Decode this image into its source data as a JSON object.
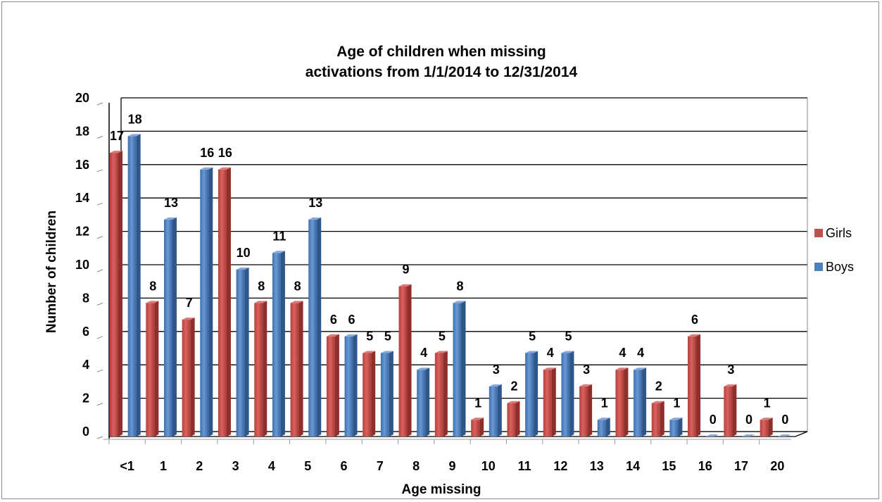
{
  "chart_data": {
    "type": "bar",
    "title": "Age of children when missing",
    "subtitle": "activations from 1/1/2014 to 12/31/2014",
    "xlabel": "Age missing",
    "ylabel": "Number of children",
    "ylim": [
      0,
      20
    ],
    "y_ticks": [
      "0",
      "2",
      "4",
      "6",
      "8",
      "10",
      "12",
      "14",
      "16",
      "18",
      "20"
    ],
    "grid": true,
    "legend_position": "right",
    "categories": [
      "<1",
      "1",
      "2",
      "3",
      "4",
      "5",
      "6",
      "7",
      "8",
      "9",
      "10",
      "11",
      "12",
      "13",
      "14",
      "15",
      "16",
      "17",
      "20"
    ],
    "series": [
      {
        "name": "Girls",
        "color": "#c0504d",
        "values": [
          17,
          8,
          7,
          16,
          8,
          8,
          6,
          5,
          9,
          5,
          1,
          2,
          4,
          3,
          4,
          2,
          6,
          3,
          1
        ]
      },
      {
        "name": "Boys",
        "color": "#4f81bd",
        "values": [
          18,
          13,
          16,
          10,
          11,
          13,
          6,
          5,
          4,
          8,
          3,
          5,
          5,
          1,
          4,
          1,
          0,
          0,
          0
        ]
      }
    ]
  }
}
